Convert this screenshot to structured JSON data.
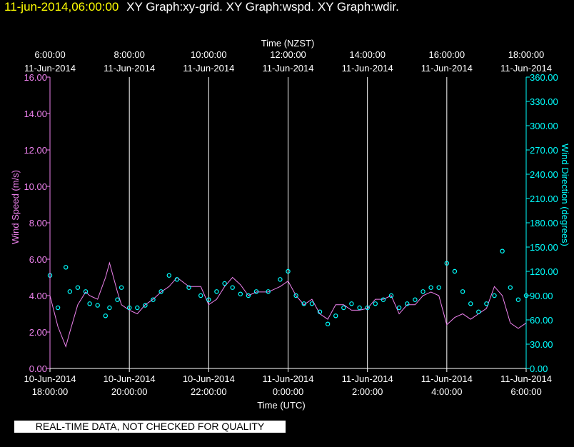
{
  "header": {
    "timestamp": "11-jun-2014,06:00:00",
    "title": "XY Graph:xy-grid.  XY Graph:wspd.  XY Graph:wdir."
  },
  "disclaimer": "REAL-TIME DATA, NOT CHECKED FOR QUALITY",
  "colors": {
    "background": "#000000",
    "wind_speed": "#ee82ee",
    "wind_direction": "#00ffff",
    "grid": "#ffffff",
    "axis_text": "#ffffff",
    "header_time": "#ffff00"
  },
  "chart_data": {
    "type": "line",
    "top_axis": {
      "label": "Time (NZST)",
      "ticks": [
        {
          "time": "6:00:00",
          "date": "11-Jun-2014"
        },
        {
          "time": "8:00:00",
          "date": "11-Jun-2014"
        },
        {
          "time": "10:00:00",
          "date": "11-Jun-2014"
        },
        {
          "time": "12:00:00",
          "date": "11-Jun-2014"
        },
        {
          "time": "14:00:00",
          "date": "11-Jun-2014"
        },
        {
          "time": "16:00:00",
          "date": "11-Jun-2014"
        },
        {
          "time": "18:00:00",
          "date": "11-Jun-2014"
        }
      ]
    },
    "bottom_axis": {
      "label": "Time (UTC)",
      "ticks": [
        {
          "date": "10-Jun-2014",
          "time": "18:00:00"
        },
        {
          "date": "10-Jun-2014",
          "time": "20:00:00"
        },
        {
          "date": "10-Jun-2014",
          "time": "22:00:00"
        },
        {
          "date": "11-Jun-2014",
          "time": "0:00:00"
        },
        {
          "date": "11-Jun-2014",
          "time": "2:00:00"
        },
        {
          "date": "11-Jun-2014",
          "time": "4:00:00"
        },
        {
          "date": "11-Jun-2014",
          "time": "6:00:00"
        }
      ]
    },
    "xlim_hours_utc": [
      18,
      30
    ],
    "left_axis": {
      "label": "Wind Speed (m/s)",
      "ylim": [
        0,
        16
      ],
      "ticks": [
        "0.00",
        "2.00",
        "4.00",
        "6.00",
        "8.00",
        "10.00",
        "12.00",
        "14.00",
        "16.00"
      ]
    },
    "right_axis": {
      "label": "Wind Direction (degrees)",
      "ylim": [
        0,
        360
      ],
      "ticks": [
        "0.00",
        "30.00",
        "60.00",
        "90.00",
        "120.00",
        "150.00",
        "180.00",
        "210.00",
        "240.00",
        "270.00",
        "300.00",
        "330.00",
        "360.00"
      ]
    },
    "grid": "vertical lines at each 2-hour tick",
    "series": [
      {
        "name": "Wind Speed (m/s)",
        "style": "line",
        "x_hours_utc": [
          18.0,
          18.2,
          18.4,
          18.5,
          18.7,
          18.9,
          19.0,
          19.2,
          19.4,
          19.5,
          19.7,
          19.8,
          20.0,
          20.2,
          20.4,
          20.6,
          20.8,
          21.0,
          21.2,
          21.5,
          21.8,
          22.0,
          22.2,
          22.4,
          22.6,
          22.8,
          23.0,
          23.2,
          23.5,
          23.8,
          24.0,
          24.2,
          24.4,
          24.6,
          24.8,
          25.0,
          25.2,
          25.4,
          25.6,
          25.8,
          26.0,
          26.2,
          26.4,
          26.6,
          26.8,
          27.0,
          27.2,
          27.4,
          27.6,
          27.8,
          28.0,
          28.2,
          28.4,
          28.6,
          28.8,
          29.0,
          29.2,
          29.4,
          29.6,
          29.8,
          30.0
        ],
        "values": [
          4.0,
          2.3,
          1.2,
          2.0,
          3.5,
          4.2,
          4.0,
          3.8,
          5.0,
          5.8,
          4.2,
          3.5,
          3.2,
          3.0,
          3.5,
          3.8,
          4.2,
          4.5,
          5.0,
          4.5,
          4.5,
          3.5,
          3.8,
          4.5,
          5.0,
          4.6,
          4.0,
          4.2,
          4.2,
          4.5,
          4.8,
          4.0,
          3.5,
          3.8,
          3.0,
          2.7,
          3.5,
          3.5,
          3.2,
          3.2,
          3.3,
          3.8,
          3.8,
          4.0,
          3.0,
          3.5,
          3.5,
          4.0,
          4.2,
          4.0,
          2.4,
          2.8,
          3.0,
          2.7,
          3.0,
          3.3,
          4.5,
          4.0,
          2.5,
          2.2,
          2.5
        ]
      },
      {
        "name": "Wind Direction (degrees)",
        "style": "markers",
        "x_hours_utc": [
          18.0,
          18.2,
          18.4,
          18.5,
          18.7,
          18.9,
          19.0,
          19.2,
          19.4,
          19.5,
          19.7,
          19.8,
          20.0,
          20.2,
          20.4,
          20.6,
          20.8,
          21.0,
          21.2,
          21.5,
          21.8,
          22.0,
          22.2,
          22.4,
          22.6,
          22.8,
          23.0,
          23.2,
          23.5,
          23.8,
          24.0,
          24.2,
          24.4,
          24.6,
          24.8,
          25.0,
          25.2,
          25.4,
          25.6,
          25.8,
          26.0,
          26.2,
          26.4,
          26.6,
          26.8,
          27.0,
          27.2,
          27.4,
          27.6,
          27.8,
          28.0,
          28.2,
          28.4,
          28.6,
          28.8,
          29.0,
          29.2,
          29.4,
          29.6,
          29.8,
          30.0
        ],
        "values": [
          115,
          75,
          125,
          95,
          100,
          95,
          80,
          78,
          65,
          75,
          85,
          100,
          75,
          75,
          78,
          85,
          95,
          115,
          110,
          100,
          90,
          85,
          95,
          105,
          100,
          92,
          90,
          95,
          95,
          110,
          120,
          90,
          80,
          80,
          70,
          55,
          65,
          75,
          80,
          75,
          75,
          80,
          85,
          90,
          75,
          80,
          85,
          95,
          100,
          100,
          130,
          120,
          95,
          80,
          70,
          80,
          90,
          145,
          100,
          85,
          90
        ]
      }
    ]
  }
}
